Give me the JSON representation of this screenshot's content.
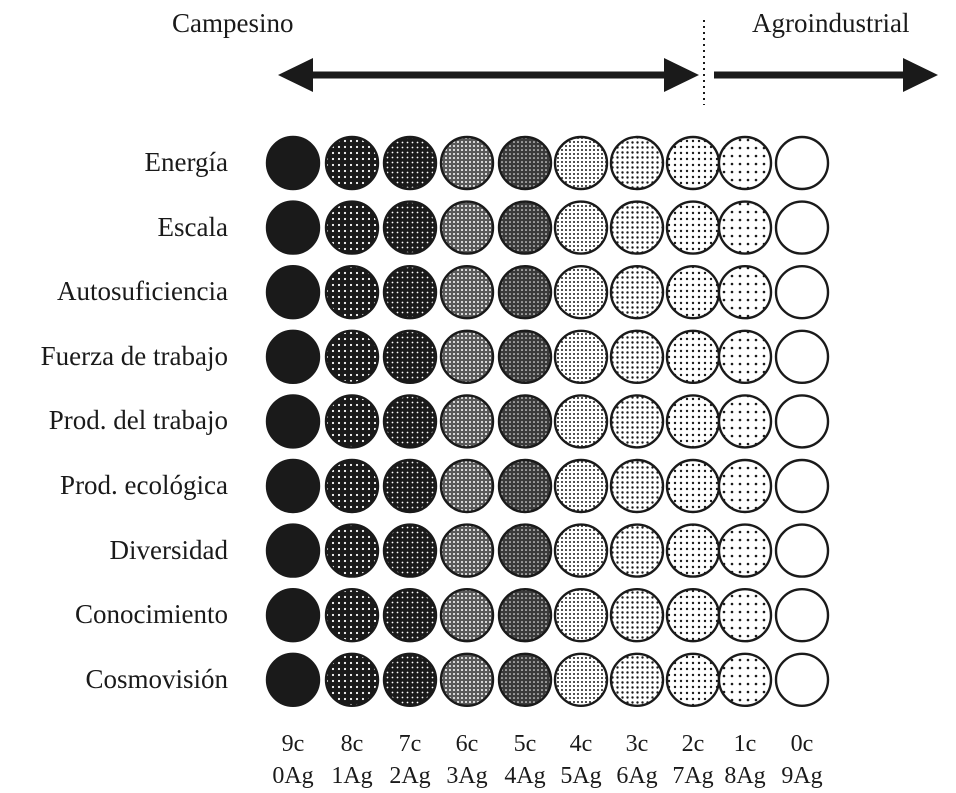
{
  "header": {
    "left_label": "Campesino",
    "right_label": "Agroindustrial"
  },
  "rows": [
    "Energía",
    "Escala",
    "Autosuficiencia",
    "Fuerza de trabajo",
    "Prod. del trabajo",
    "Prod. ecológica",
    "Diversidad",
    "Conocimiento",
    "Cosmovisión"
  ],
  "columns": [
    {
      "top": "9c",
      "bottom": "0Ag",
      "campesino_share": 9
    },
    {
      "top": "8c",
      "bottom": "1Ag",
      "campesino_share": 8
    },
    {
      "top": "7c",
      "bottom": "2Ag",
      "campesino_share": 7
    },
    {
      "top": "6c",
      "bottom": "3Ag",
      "campesino_share": 6
    },
    {
      "top": "5c",
      "bottom": "4Ag",
      "campesino_share": 5
    },
    {
      "top": "4c",
      "bottom": "5Ag",
      "campesino_share": 4
    },
    {
      "top": "3c",
      "bottom": "6Ag",
      "campesino_share": 3
    },
    {
      "top": "2c",
      "bottom": "7Ag",
      "campesino_share": 2
    },
    {
      "top": "1c",
      "bottom": "8Ag",
      "campesino_share": 1
    },
    {
      "top": "0c",
      "bottom": "9Ag",
      "campesino_share": 0
    }
  ],
  "colors": {
    "ink": "#1a1a1a",
    "paper": "#ffffff"
  }
}
